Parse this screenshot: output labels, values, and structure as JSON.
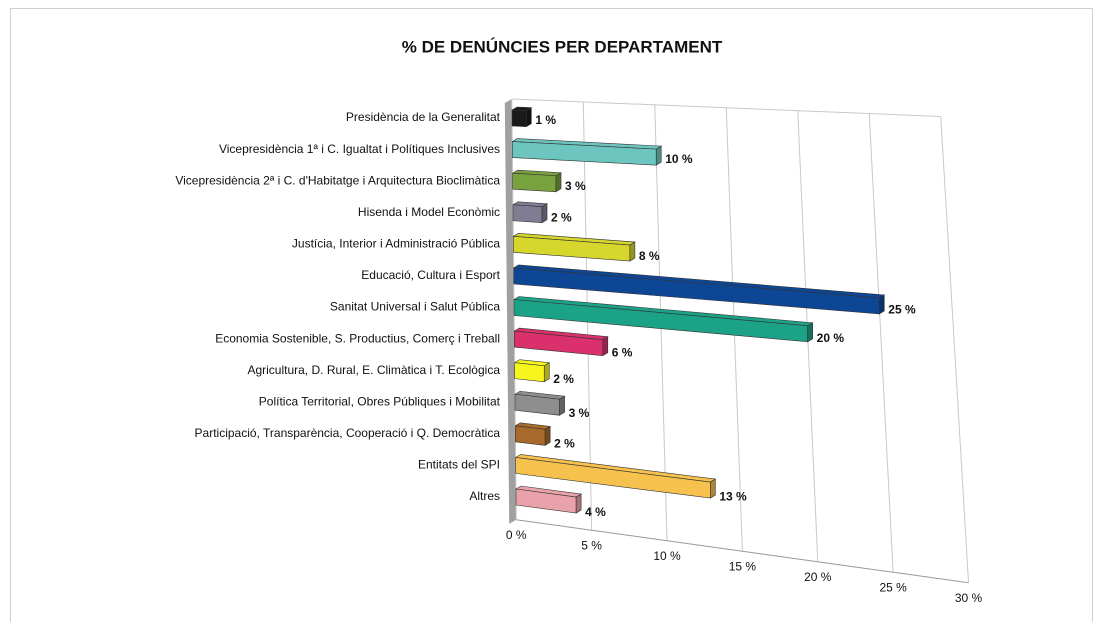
{
  "chart_data": {
    "type": "bar3d",
    "orientation": "horizontal",
    "title": "% DE DENÚNCIES PER DEPARTAMENT",
    "categories": [
      "Presidència de la Generalitat",
      "Vicepresidència 1ª i C. Igualtat i Polítiques Inclusives",
      "Vicepresidència 2ª i C. d'Habitatge i Arquitectura Bioclimàtica",
      "Hisenda i Model Econòmic",
      "Justícia, Interior i Administració Pública",
      "Educació, Cultura i Esport",
      "Sanitat Universal i Salut Pública",
      "Economia Sostenible, S. Productius, Comerç i Treball",
      "Agricultura, D. Rural, E. Climàtica i T. Ecològica",
      "Política Territorial, Obres Públiques i Mobilitat",
      "Participació, Transparència, Cooperació i Q. Democràtica",
      "Entitats del SPI",
      "Altres"
    ],
    "values": [
      1,
      10,
      3,
      2,
      8,
      25,
      20,
      6,
      2,
      3,
      2,
      13,
      4
    ],
    "value_labels": [
      "1 %",
      "10 %",
      "3 %",
      "2 %",
      "8 %",
      "25 %",
      "20 %",
      "6 %",
      "2 %",
      "3 %",
      "2 %",
      "13 %",
      "4 %"
    ],
    "colors": [
      "#1a1a1a",
      "#6cc6bf",
      "#78a23e",
      "#807c94",
      "#d6d62c",
      "#0e4696",
      "#1ba287",
      "#da316d",
      "#f6f61c",
      "#8e8e8e",
      "#a86a2a",
      "#f6c14c",
      "#e9a2aa"
    ],
    "xlim": [
      0,
      30
    ],
    "xticks": [
      {
        "value": 0,
        "label": "0 %"
      },
      {
        "value": 5,
        "label": "5 %"
      },
      {
        "value": 10,
        "label": "10 %"
      },
      {
        "value": 15,
        "label": "15 %"
      },
      {
        "value": 20,
        "label": "20 %"
      },
      {
        "value": 25,
        "label": "25 %"
      },
      {
        "value": 30,
        "label": "30 %"
      }
    ],
    "grid": true
  }
}
